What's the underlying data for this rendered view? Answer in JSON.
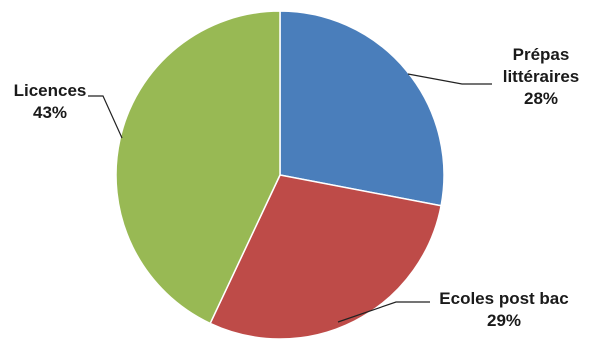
{
  "chart_data": {
    "type": "pie",
    "title": "",
    "slices": [
      {
        "label_lines": [
          "Prépas",
          "littéraires"
        ],
        "percent_label": "28%",
        "value": 28,
        "color": "#4a7ebb"
      },
      {
        "label_lines": [
          "Ecoles post bac"
        ],
        "percent_label": "29%",
        "value": 29,
        "color": "#be4b48"
      },
      {
        "label_lines": [
          "Licences"
        ],
        "percent_label": "43%",
        "value": 43,
        "color": "#98b954"
      }
    ],
    "start_angle_deg": 0,
    "direction": "clockwise",
    "legend": "none",
    "data_labels": "outside-with-leader-lines"
  }
}
